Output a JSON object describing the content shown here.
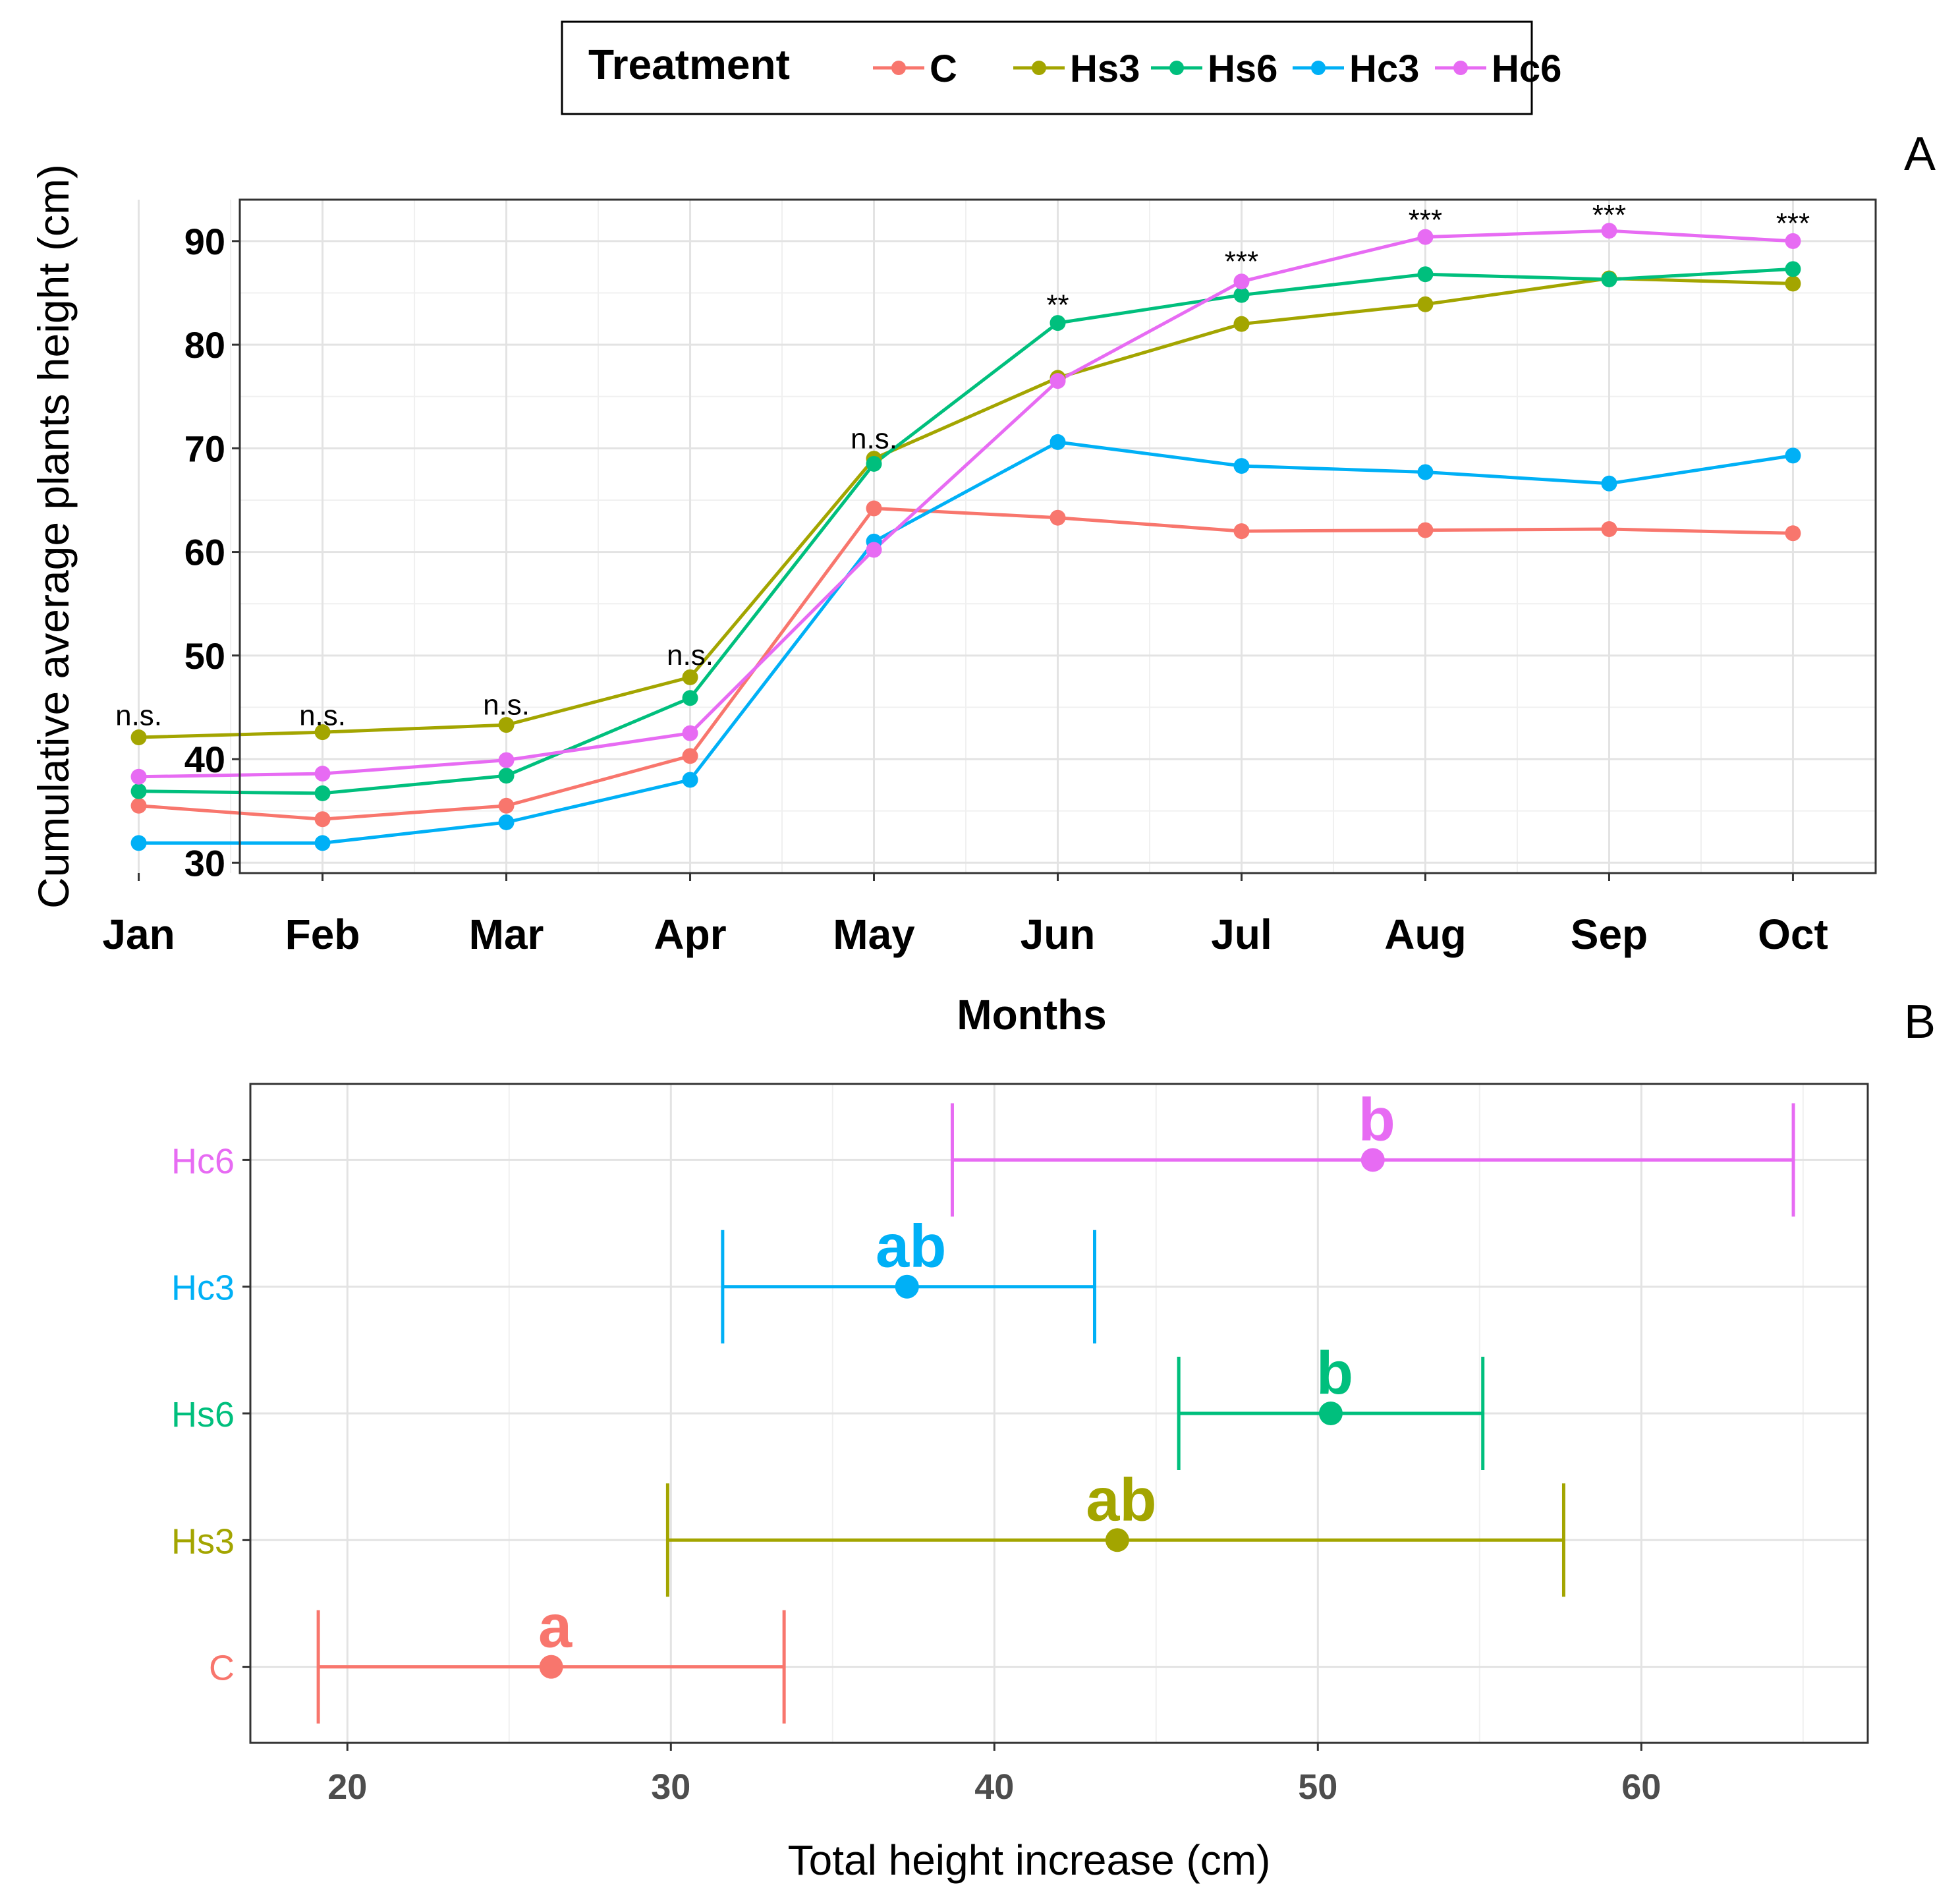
{
  "legend": {
    "title": "Treatment",
    "entries": [
      {
        "name": "C",
        "color": "#F8766D"
      },
      {
        "name": "Hs3",
        "color": "#A3A500"
      },
      {
        "name": "Hs6",
        "color": "#00BF7D"
      },
      {
        "name": "Hc3",
        "color": "#00B0F6"
      },
      {
        "name": "Hc6",
        "color": "#E76BF3"
      }
    ]
  },
  "chart_data": [
    {
      "panel": "A",
      "type": "line",
      "xlabel": "Months",
      "ylabel": "Cumulative average plants height (cm)",
      "categories": [
        "Jan",
        "Feb",
        "Mar",
        "Apr",
        "May",
        "Jun",
        "Jul",
        "Aug",
        "Sep",
        "Oct"
      ],
      "ylim": [
        29,
        94
      ],
      "yticks": [
        30,
        40,
        50,
        60,
        70,
        80,
        90
      ],
      "grid": true,
      "series": [
        {
          "name": "C",
          "color": "#F8766D",
          "values": [
            35.5,
            34.2,
            35.5,
            40.3,
            64.2,
            63.3,
            62.0,
            62.1,
            62.2,
            61.8
          ]
        },
        {
          "name": "Hs3",
          "color": "#A3A500",
          "values": [
            42.1,
            42.6,
            43.3,
            47.9,
            69.0,
            76.8,
            82.0,
            83.9,
            86.4,
            85.9
          ]
        },
        {
          "name": "Hs6",
          "color": "#00BF7D",
          "values": [
            36.9,
            36.7,
            38.4,
            45.9,
            68.5,
            82.1,
            84.8,
            86.8,
            86.3,
            87.3
          ]
        },
        {
          "name": "Hc3",
          "color": "#00B0F6",
          "values": [
            31.9,
            31.9,
            33.9,
            38.0,
            61.0,
            70.6,
            68.3,
            67.7,
            66.6,
            69.3
          ]
        },
        {
          "name": "Hc6",
          "color": "#E76BF3",
          "values": [
            38.3,
            38.6,
            39.9,
            42.5,
            60.2,
            76.5,
            86.1,
            90.4,
            91.0,
            90.0
          ]
        }
      ],
      "significance": [
        {
          "month": "Jan",
          "label": "n.s.",
          "y": 43.8
        },
        {
          "month": "Feb",
          "label": "n.s.",
          "y": 43.8
        },
        {
          "month": "Mar",
          "label": "n.s.",
          "y": 44.8
        },
        {
          "month": "Apr",
          "label": "n.s.",
          "y": 49.6
        },
        {
          "month": "May",
          "label": "n.s.",
          "y": 70.5
        },
        {
          "month": "Jun",
          "label": "**",
          "y": 83.4
        },
        {
          "month": "Jul",
          "label": "***",
          "y": 87.6
        },
        {
          "month": "Aug",
          "label": "***",
          "y": 91.6
        },
        {
          "month": "Sep",
          "label": "***",
          "y": 92.1
        },
        {
          "month": "Oct",
          "label": "***",
          "y": 91.3
        }
      ]
    },
    {
      "panel": "B",
      "type": "errorbar",
      "xlabel": "Total height increase (cm)",
      "ylabel": "",
      "categories": [
        "C",
        "Hs3",
        "Hs6",
        "Hc3",
        "Hc6"
      ],
      "xlim": [
        17,
        67
      ],
      "xticks": [
        20,
        30,
        40,
        50,
        60
      ],
      "grid": true,
      "points": [
        {
          "name": "C",
          "color": "#F8766D",
          "mean": 26.3,
          "low": 19.1,
          "high": 33.5,
          "group": "a"
        },
        {
          "name": "Hs3",
          "color": "#A3A500",
          "mean": 43.8,
          "low": 29.9,
          "high": 57.6,
          "group": "ab"
        },
        {
          "name": "Hs6",
          "color": "#00BF7D",
          "mean": 50.4,
          "low": 45.7,
          "high": 55.1,
          "group": "b"
        },
        {
          "name": "Hc3",
          "color": "#00B0F6",
          "mean": 37.3,
          "low": 31.6,
          "high": 43.1,
          "group": "ab"
        },
        {
          "name": "Hc6",
          "color": "#E76BF3",
          "mean": 51.7,
          "low": 38.7,
          "high": 64.7,
          "group": "b"
        }
      ]
    }
  ],
  "panel_labels": [
    "A",
    "B"
  ]
}
